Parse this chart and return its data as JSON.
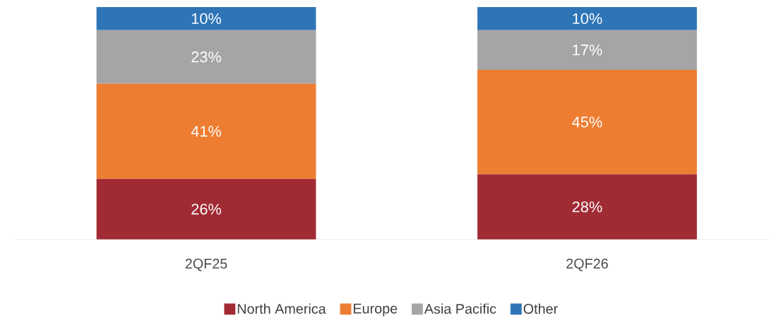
{
  "chart_data": {
    "type": "bar",
    "stacked": true,
    "categories": [
      "2QF25",
      "2QF26"
    ],
    "series": [
      {
        "name": "North America",
        "color": "#a02b34",
        "values": [
          26,
          28
        ],
        "value_labels": [
          "26%",
          "28%"
        ]
      },
      {
        "name": "Europe",
        "color": "#ed7d31",
        "values": [
          41,
          45
        ],
        "value_labels": [
          "41%",
          "45%"
        ]
      },
      {
        "name": "Asia Pacific",
        "color": "#a5a5a5",
        "values": [
          23,
          17
        ],
        "value_labels": [
          "23%",
          "17%"
        ]
      },
      {
        "name": "Other",
        "color": "#2e75b6",
        "values": [
          10,
          10
        ],
        "value_labels": [
          "10%",
          "10%"
        ]
      }
    ],
    "legend": "bottom"
  }
}
